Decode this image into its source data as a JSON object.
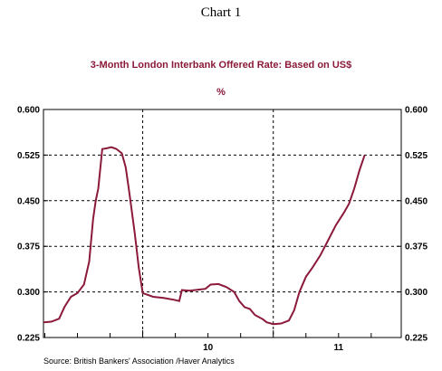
{
  "page": {
    "title": "Chart 1"
  },
  "chart_data": {
    "type": "line",
    "title": "3-Month London Interbank Offered Rate: Based on US$",
    "subtitle": "%",
    "source": "Source:  British Bankers' Association /Haver Analytics",
    "ylim": [
      0.225,
      0.6
    ],
    "yticks": [
      "0.600",
      "0.525",
      "0.450",
      "0.375",
      "0.300",
      "0.225"
    ],
    "x_labels": [
      {
        "label": "10",
        "x": 2010.0
      },
      {
        "label": "11",
        "x": 2011.0
      }
    ],
    "x_range": [
      2009.24,
      2011.98
    ],
    "x_major_gridlines": [
      2010.0,
      2011.0
    ],
    "grid": "dashed",
    "color": "#8b1a3a",
    "series": [
      {
        "values": [
          [
            2009.24,
            0.25
          ],
          [
            2009.3,
            0.251
          ],
          [
            2009.36,
            0.256
          ],
          [
            2009.4,
            0.275
          ],
          [
            2009.45,
            0.292
          ],
          [
            2009.5,
            0.298
          ],
          [
            2009.55,
            0.312
          ],
          [
            2009.59,
            0.35
          ],
          [
            2009.62,
            0.42
          ],
          [
            2009.64,
            0.45
          ],
          [
            2009.66,
            0.47
          ],
          [
            2009.69,
            0.535
          ],
          [
            2009.72,
            0.536
          ],
          [
            2009.76,
            0.538
          ],
          [
            2009.8,
            0.535
          ],
          [
            2009.84,
            0.528
          ],
          [
            2009.87,
            0.505
          ],
          [
            2009.9,
            0.46
          ],
          [
            2009.94,
            0.395
          ],
          [
            2009.97,
            0.34
          ],
          [
            2010.0,
            0.298
          ],
          [
            2010.08,
            0.292
          ],
          [
            2010.16,
            0.29
          ],
          [
            2010.24,
            0.287
          ],
          [
            2010.28,
            0.285
          ],
          [
            2010.3,
            0.303
          ],
          [
            2010.36,
            0.302
          ],
          [
            2010.44,
            0.304
          ],
          [
            2010.48,
            0.305
          ],
          [
            2010.52,
            0.312
          ],
          [
            2010.58,
            0.313
          ],
          [
            2010.64,
            0.308
          ],
          [
            2010.7,
            0.3
          ],
          [
            2010.74,
            0.285
          ],
          [
            2010.78,
            0.275
          ],
          [
            2010.82,
            0.272
          ],
          [
            2010.86,
            0.262
          ],
          [
            2010.92,
            0.255
          ],
          [
            2010.95,
            0.25
          ],
          [
            2011.0,
            0.247
          ],
          [
            2011.06,
            0.248
          ],
          [
            2011.12,
            0.253
          ],
          [
            2011.16,
            0.27
          ],
          [
            2011.2,
            0.3
          ],
          [
            2011.25,
            0.325
          ],
          [
            2011.3,
            0.34
          ],
          [
            2011.36,
            0.36
          ],
          [
            2011.42,
            0.385
          ],
          [
            2011.48,
            0.41
          ],
          [
            2011.54,
            0.43
          ],
          [
            2011.58,
            0.445
          ],
          [
            2011.62,
            0.47
          ],
          [
            2011.66,
            0.5
          ],
          [
            2011.7,
            0.525
          ]
        ]
      }
    ]
  }
}
